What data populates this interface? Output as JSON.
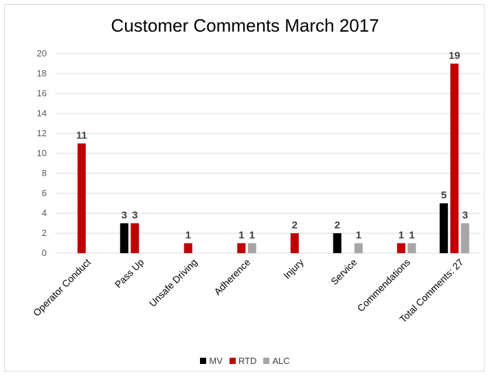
{
  "chart_data": {
    "type": "bar",
    "title": "Customer Comments March 2017",
    "categories": [
      "Operator Conduct",
      "Pass Up",
      "Unsafe Driving",
      "Adherence",
      "Injury",
      "Service",
      "Commendations",
      "Total Comments: 27"
    ],
    "series": [
      {
        "name": "MV",
        "color": "#000000",
        "values": [
          null,
          3,
          null,
          null,
          null,
          2,
          null,
          5
        ]
      },
      {
        "name": "RTD",
        "color": "#c00000",
        "values": [
          11,
          3,
          1,
          1,
          2,
          null,
          1,
          19
        ]
      },
      {
        "name": "ALC",
        "color": "#a6a6a6",
        "values": [
          null,
          null,
          null,
          1,
          null,
          1,
          1,
          3
        ]
      }
    ],
    "ylim": [
      0,
      20
    ],
    "yticks": [
      0,
      2,
      4,
      6,
      8,
      10,
      12,
      14,
      16,
      18,
      20
    ],
    "grid": true,
    "legend_position": "bottom"
  }
}
